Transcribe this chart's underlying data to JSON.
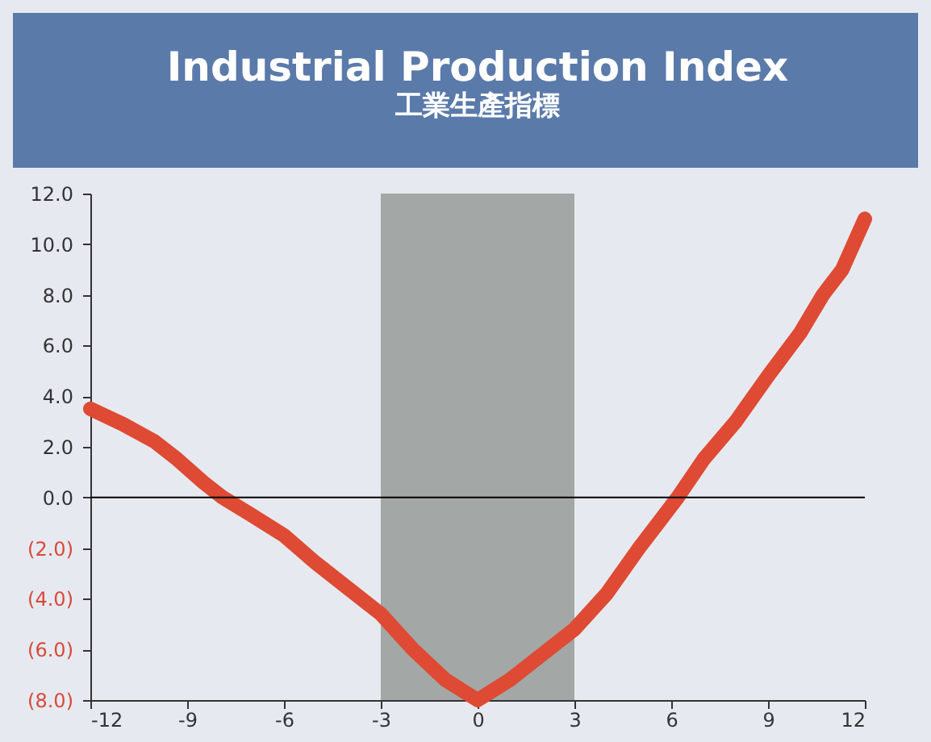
{
  "chart_data": {
    "type": "line",
    "title": "Industrial Production Index",
    "subtitle": "工業生產指標",
    "x": [
      -12,
      -11,
      -10,
      -9.3,
      -8.5,
      -7.9,
      -7,
      -6,
      -5,
      -4,
      -3,
      -2,
      -1,
      0,
      1,
      2,
      3,
      4,
      5,
      5.6,
      6.2,
      7,
      8,
      9,
      10,
      10.7,
      11.3,
      12
    ],
    "series": [
      {
        "color": "#de4a33",
        "values": [
          3.5,
          2.9,
          2.2,
          1.5,
          0.6,
          0,
          -0.7,
          -1.5,
          -2.6,
          -3.6,
          -4.6,
          -6,
          -7.2,
          -8,
          -7.2,
          -6.2,
          -5.2,
          -3.8,
          -2,
          -1,
          0,
          1.5,
          3,
          4.8,
          6.5,
          8,
          9,
          11
        ]
      }
    ],
    "xlim": [
      -12,
      12
    ],
    "xticks": [
      -12,
      -9,
      -6,
      -3,
      0,
      3,
      6,
      9,
      12
    ],
    "ylim": [
      -8,
      12
    ],
    "yticks": [
      {
        "value": -8,
        "label": "(8.0)"
      },
      {
        "value": -6,
        "label": "(6.0)"
      },
      {
        "value": -4,
        "label": "(4.0)"
      },
      {
        "value": -2,
        "label": "(2.0)"
      },
      {
        "value": 0,
        "label": "0.0"
      },
      {
        "value": 2,
        "label": "2.0"
      },
      {
        "value": 4,
        "label": "4.0"
      },
      {
        "value": 6,
        "label": "6.0"
      },
      {
        "value": 8,
        "label": "8.0"
      },
      {
        "value": 10,
        "label": "10.0"
      },
      {
        "value": 12,
        "label": "12.0"
      }
    ],
    "bands": [
      {
        "axis": "x",
        "from": -3,
        "to": 3,
        "color": "#a3a7a5"
      }
    ],
    "ref_lines": [
      {
        "axis": "y",
        "value": 0,
        "color": "#000000"
      }
    ],
    "grid": false,
    "line_style": "solid"
  }
}
